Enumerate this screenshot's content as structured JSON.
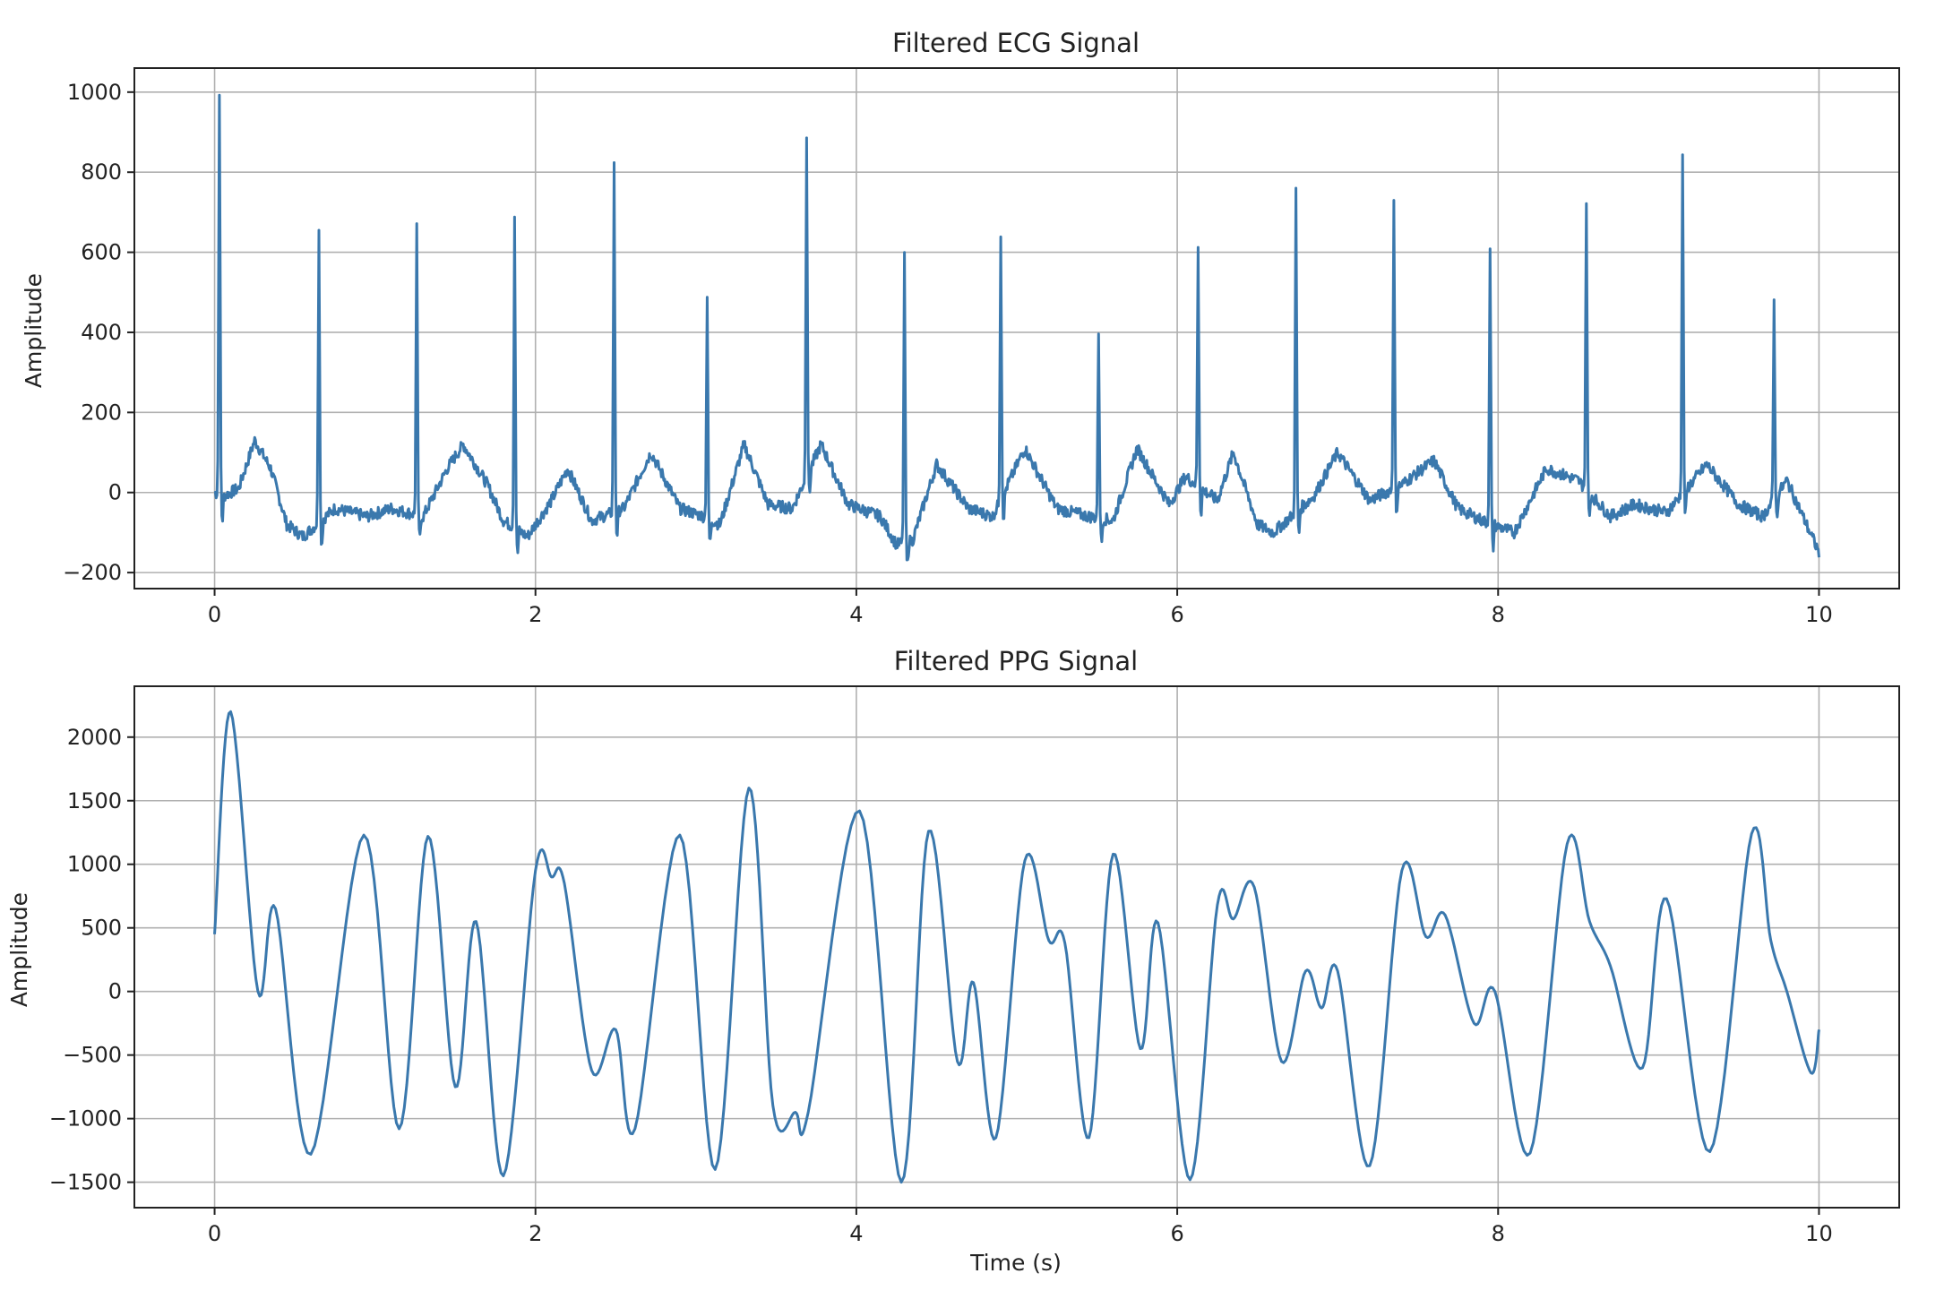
{
  "chart_data": [
    {
      "type": "line",
      "title": "Filtered ECG Signal",
      "xlabel": "",
      "ylabel": "Amplitude",
      "xlim": [
        -0.5,
        10.5
      ],
      "ylim": [
        -240,
        1060
      ],
      "xticks": [
        0,
        2,
        4,
        6,
        8,
        10
      ],
      "xtick_labels": [
        "0",
        "2",
        "4",
        "6",
        "8",
        "10"
      ],
      "yticks": [
        -200,
        0,
        200,
        400,
        600,
        800,
        1000
      ],
      "ytick_labels": [
        "−200",
        "0",
        "200",
        "400",
        "600",
        "800",
        "1000"
      ],
      "grid": true,
      "color": "#3a78ad",
      "r_peaks": {
        "t": [
          0.03,
          0.65,
          1.26,
          1.87,
          2.49,
          3.07,
          3.69,
          4.3,
          4.9,
          5.51,
          6.13,
          6.74,
          7.35,
          7.95,
          8.55,
          9.15,
          9.72
        ],
        "amp": [
          1005,
          665,
          660,
          700,
          815,
          490,
          900,
          585,
          650,
          405,
          615,
          750,
          720,
          600,
          735,
          850,
          480
        ]
      },
      "baseline": {
        "t": [
          0.0,
          0.05,
          0.15,
          0.25,
          0.35,
          0.45,
          0.55,
          0.75,
          0.95,
          1.1,
          1.3,
          1.45,
          1.55,
          1.7,
          1.8,
          1.95,
          2.1,
          2.2,
          2.35,
          2.55,
          2.72,
          2.9,
          3.05,
          3.15,
          3.3,
          3.45,
          3.6,
          3.78,
          3.95,
          4.15,
          4.25,
          4.35,
          4.5,
          4.7,
          4.85,
          5.05,
          5.25,
          5.45,
          5.6,
          5.75,
          5.95,
          6.05,
          6.25,
          6.35,
          6.5,
          6.6,
          6.85,
          7.0,
          7.2,
          7.4,
          7.6,
          7.75,
          7.9,
          8.1,
          8.3,
          8.5,
          8.7,
          8.85,
          9.05,
          9.3,
          9.5,
          9.65,
          9.8,
          10.0
        ],
        "amp": [
          0,
          -10,
          10,
          130,
          60,
          -80,
          -110,
          -40,
          -60,
          -40,
          -60,
          60,
          120,
          20,
          -70,
          -110,
          -20,
          60,
          -70,
          -40,
          100,
          -40,
          -60,
          -80,
          120,
          -30,
          -40,
          120,
          -30,
          -60,
          -130,
          -120,
          70,
          -40,
          -60,
          110,
          -40,
          -60,
          -70,
          110,
          -30,
          40,
          -20,
          100,
          -80,
          -100,
          -10,
          100,
          -20,
          20,
          80,
          -40,
          -70,
          -100,
          60,
          30,
          -60,
          -30,
          -50,
          70,
          -30,
          -60,
          30,
          -150
        ]
      }
    },
    {
      "type": "line",
      "title": "Filtered PPG Signal",
      "xlabel": "Time (s)",
      "ylabel": "Amplitude",
      "xlim": [
        -0.5,
        10.5
      ],
      "ylim": [
        -1700,
        2400
      ],
      "xticks": [
        0,
        2,
        4,
        6,
        8,
        10
      ],
      "xtick_labels": [
        "0",
        "2",
        "4",
        "6",
        "8",
        "10"
      ],
      "yticks": [
        -1500,
        -1000,
        -500,
        0,
        500,
        1000,
        1500,
        2000
      ],
      "ytick_labels": [
        "−1500",
        "−1000",
        "−500",
        "0",
        "500",
        "1000",
        "1500",
        "2000"
      ],
      "grid": true,
      "color": "#3a78ad",
      "x": [
        0.0,
        0.1,
        0.27,
        0.38,
        0.6,
        0.93,
        1.15,
        1.33,
        1.5,
        1.63,
        1.8,
        2.0,
        2.1,
        2.18,
        2.35,
        2.5,
        2.62,
        2.9,
        3.12,
        3.33,
        3.48,
        3.62,
        3.7,
        4.02,
        4.28,
        4.45,
        4.63,
        4.73,
        4.87,
        5.05,
        5.2,
        5.3,
        5.45,
        5.6,
        5.77,
        5.88,
        6.08,
        6.25,
        6.35,
        6.48,
        6.65,
        6.8,
        6.9,
        7.0,
        7.2,
        7.4,
        7.55,
        7.67,
        7.85,
        7.98,
        8.2,
        8.43,
        8.57,
        8.7,
        8.9,
        9.05,
        9.32,
        9.58,
        9.7,
        9.8,
        9.95,
        10.0
      ],
      "y": [
        450,
        2200,
        0,
        650,
        -1280,
        1230,
        -1080,
        1220,
        -750,
        550,
        -1450,
        950,
        900,
        850,
        -620,
        -300,
        -1080,
        1230,
        -1400,
        1600,
        -900,
        -950,
        -950,
        1420,
        -1500,
        1260,
        -550,
        70,
        -1150,
        1030,
        400,
        380,
        -1150,
        1080,
        -450,
        540,
        -1480,
        680,
        570,
        820,
        -550,
        160,
        -130,
        160,
        -1370,
        950,
        430,
        600,
        -250,
        0,
        -1270,
        1160,
        550,
        200,
        -600,
        730,
        -1260,
        1240,
        400,
        0,
        -640,
        -300
      ]
    }
  ]
}
